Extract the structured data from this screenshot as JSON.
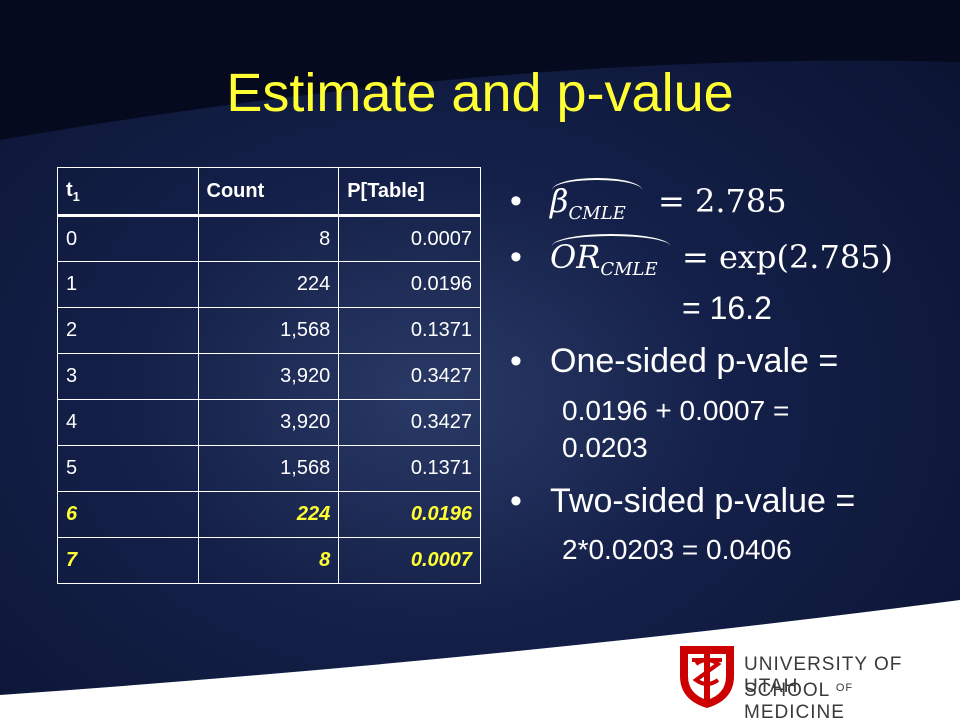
{
  "title": "Estimate and p-value",
  "table": {
    "headers": [
      "t",
      "1",
      "Count",
      "P[Table]"
    ],
    "rows": [
      [
        "0",
        "8",
        "0.0007"
      ],
      [
        "1",
        "224",
        "0.0196"
      ],
      [
        "2",
        "1,568",
        "0.1371"
      ],
      [
        "3",
        "3,920",
        "0.3427"
      ],
      [
        "4",
        "3,920",
        "0.3427"
      ],
      [
        "5",
        "1,568",
        "0.1371"
      ],
      [
        "6",
        "224",
        "0.0196"
      ],
      [
        "7",
        "8",
        "0.0007"
      ]
    ],
    "highlight_color": "#ffff33"
  },
  "bullets": {
    "beta": {
      "symbol": "β",
      "sub": "CMLE",
      "eq": "= 2.785"
    },
    "or": {
      "symbol": "OR",
      "sub": "CMLE",
      "eq": "= exp(2.785)"
    },
    "or_result": "= 16.2",
    "one_sided": "One-sided p-vale =",
    "one_sided_l1": "0.0196 + 0.0007 =",
    "one_sided_l2": "0.0203",
    "two_sided": "Two-sided p-value =",
    "two_sided_l1": "2*0.0203 = 0.0406",
    "bullet_char": "•"
  },
  "logo": {
    "line1": "UNIVERSITY OF UTAH",
    "line2a": "SCHOOL",
    "line2of": "OF",
    "line2b": "MEDICINE",
    "color": "#cc0000"
  },
  "colors": {
    "title": "#ffff33",
    "background": "#142049",
    "text": "#ffffff"
  }
}
